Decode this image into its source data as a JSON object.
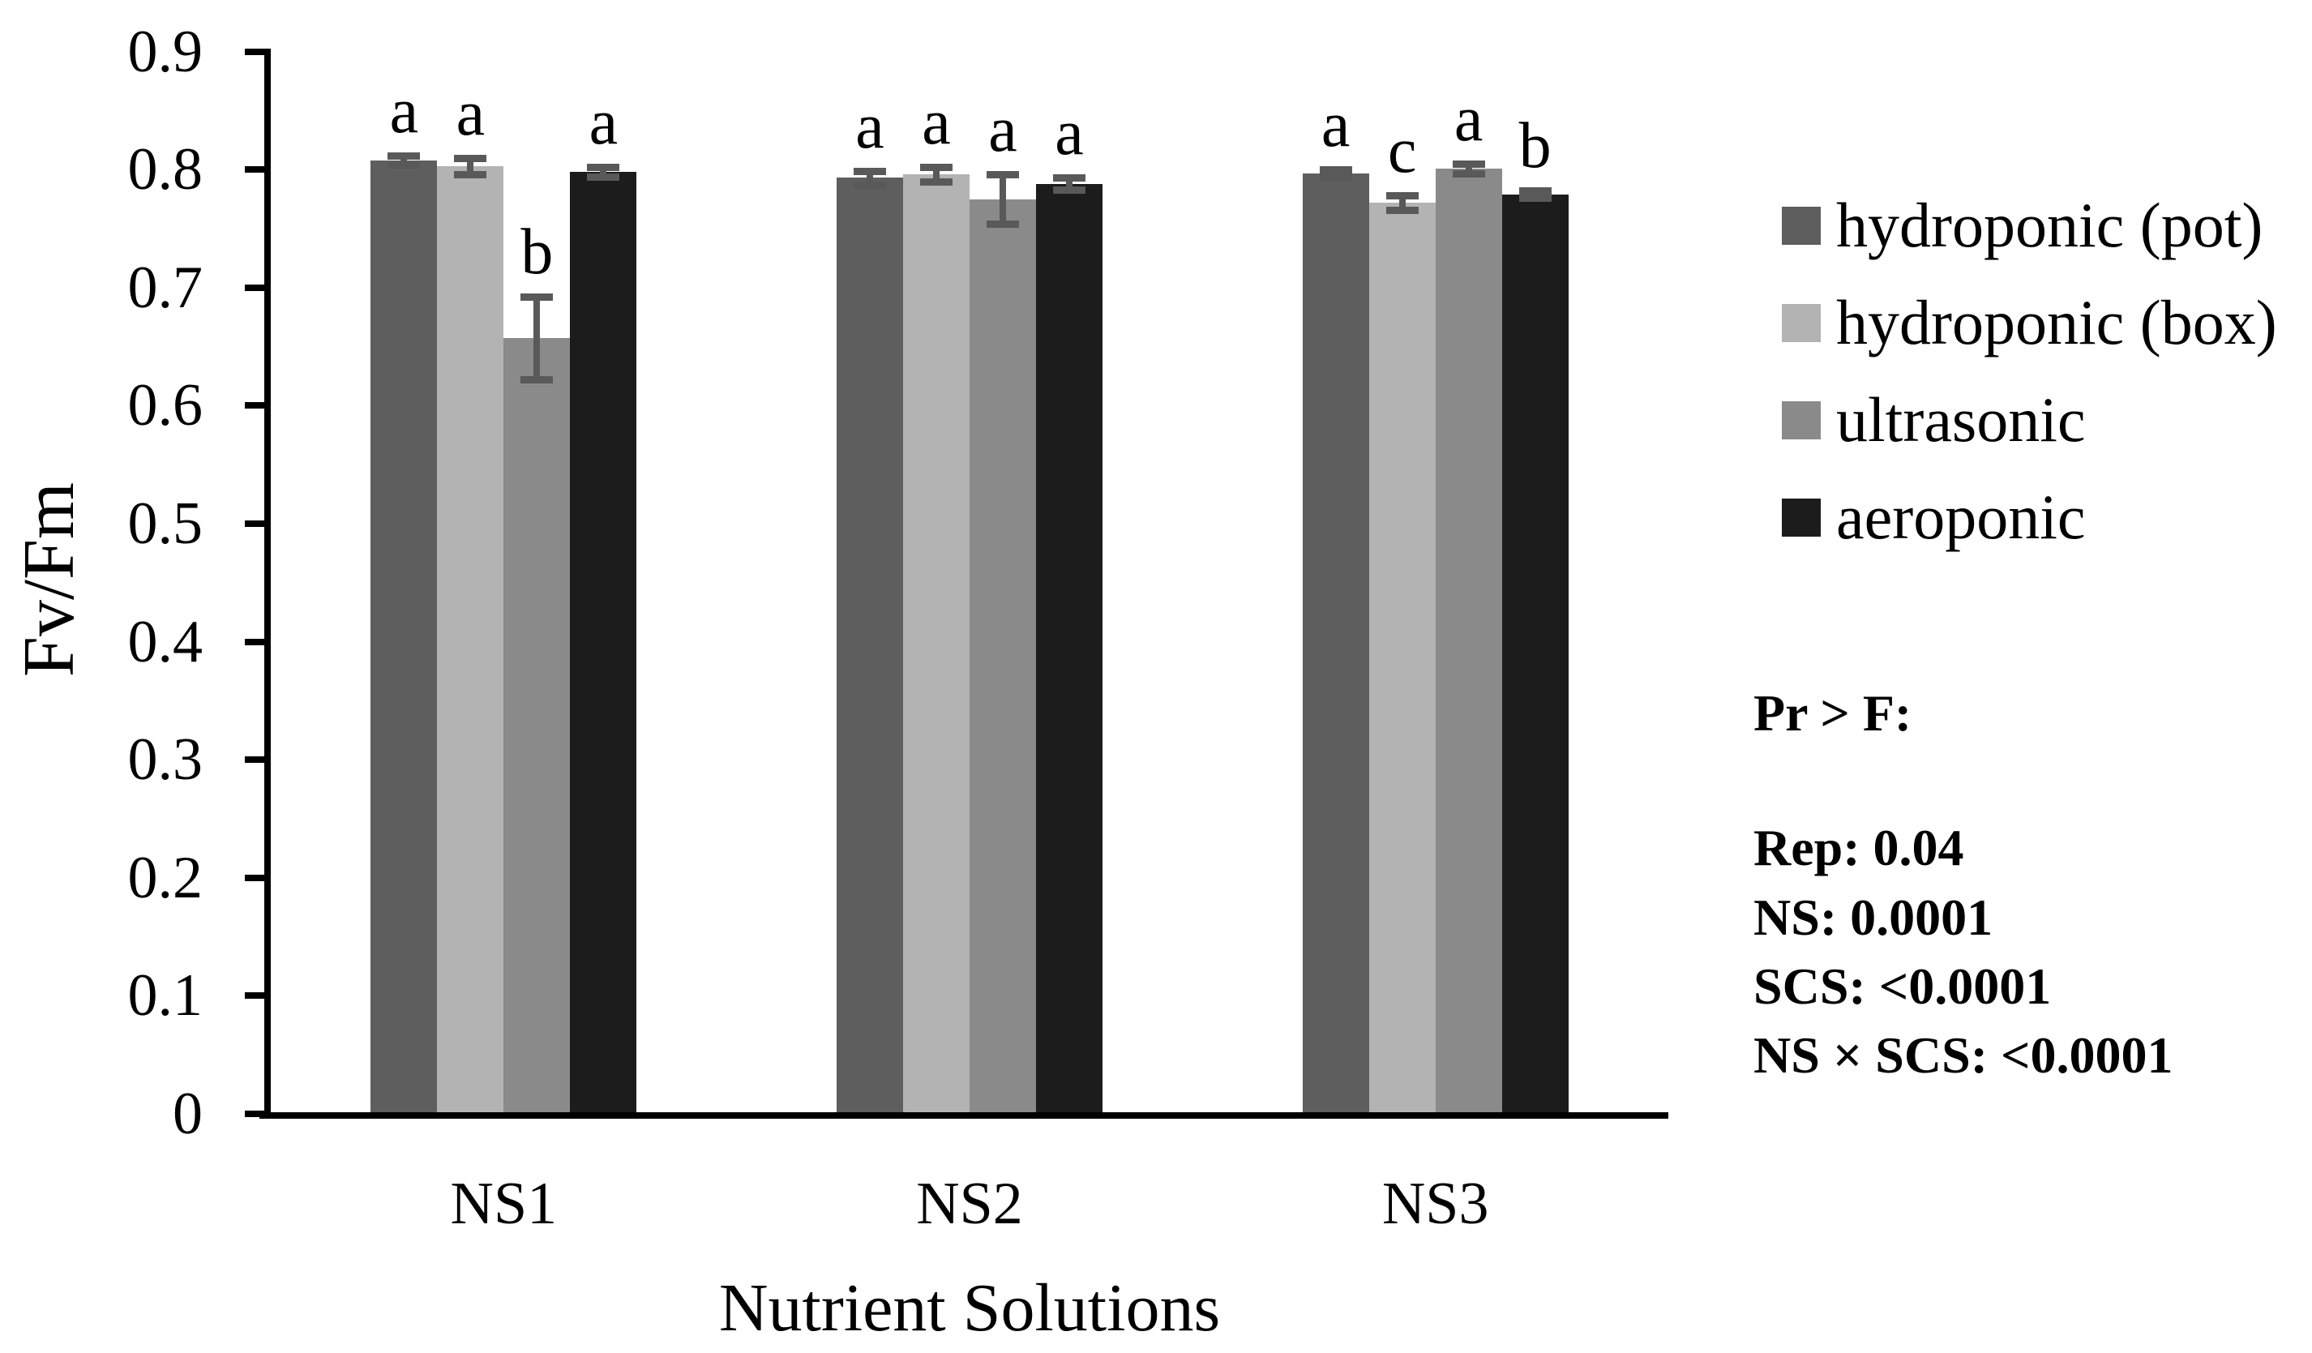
{
  "chart_data": {
    "type": "bar",
    "title": "",
    "xlabel": "Nutrient Solutions",
    "ylabel": "Fv/Fm",
    "categories": [
      "NS1",
      "NS2",
      "NS3"
    ],
    "series": [
      {
        "name": "hydroponic (pot)",
        "color": "#5e5e5e",
        "values": [
          0.808,
          0.793,
          0.797
        ],
        "errors": [
          0.004,
          0.006,
          0.003
        ],
        "letters": [
          "a",
          "a",
          "a"
        ]
      },
      {
        "name": "hydroponic (box)",
        "color": "#b3b3b3",
        "values": [
          0.803,
          0.796,
          0.772
        ],
        "errors": [
          0.007,
          0.006,
          0.006
        ],
        "letters": [
          "a",
          "a",
          "c"
        ]
      },
      {
        "name": "ultrasonic",
        "color": "#8a8a8a",
        "values": [
          0.657,
          0.775,
          0.801
        ],
        "errors": [
          0.035,
          0.021,
          0.004
        ],
        "letters": [
          "b",
          "a",
          "a"
        ]
      },
      {
        "name": "aeroponic",
        "color": "#1c1c1c",
        "values": [
          0.798,
          0.788,
          0.779
        ],
        "errors": [
          0.004,
          0.005,
          0.003
        ],
        "letters": [
          "a",
          "a",
          "b"
        ]
      }
    ],
    "ylim": [
      0,
      0.9
    ],
    "ytick_step": 0.1,
    "ytick_labels": [
      "0",
      "0.1",
      "0.2",
      "0.3",
      "0.4",
      "0.5",
      "0.6",
      "0.7",
      "0.8",
      "0.9"
    ],
    "grid": false,
    "legend_position": "right",
    "axis_color": "#000000",
    "error_bar_color": "#595959"
  },
  "stats": {
    "heading": "Pr > F:",
    "lines": [
      "Rep: 0.04",
      "NS: 0.0001",
      "SCS: <0.0001",
      "NS × SCS: <0.0001"
    ]
  }
}
